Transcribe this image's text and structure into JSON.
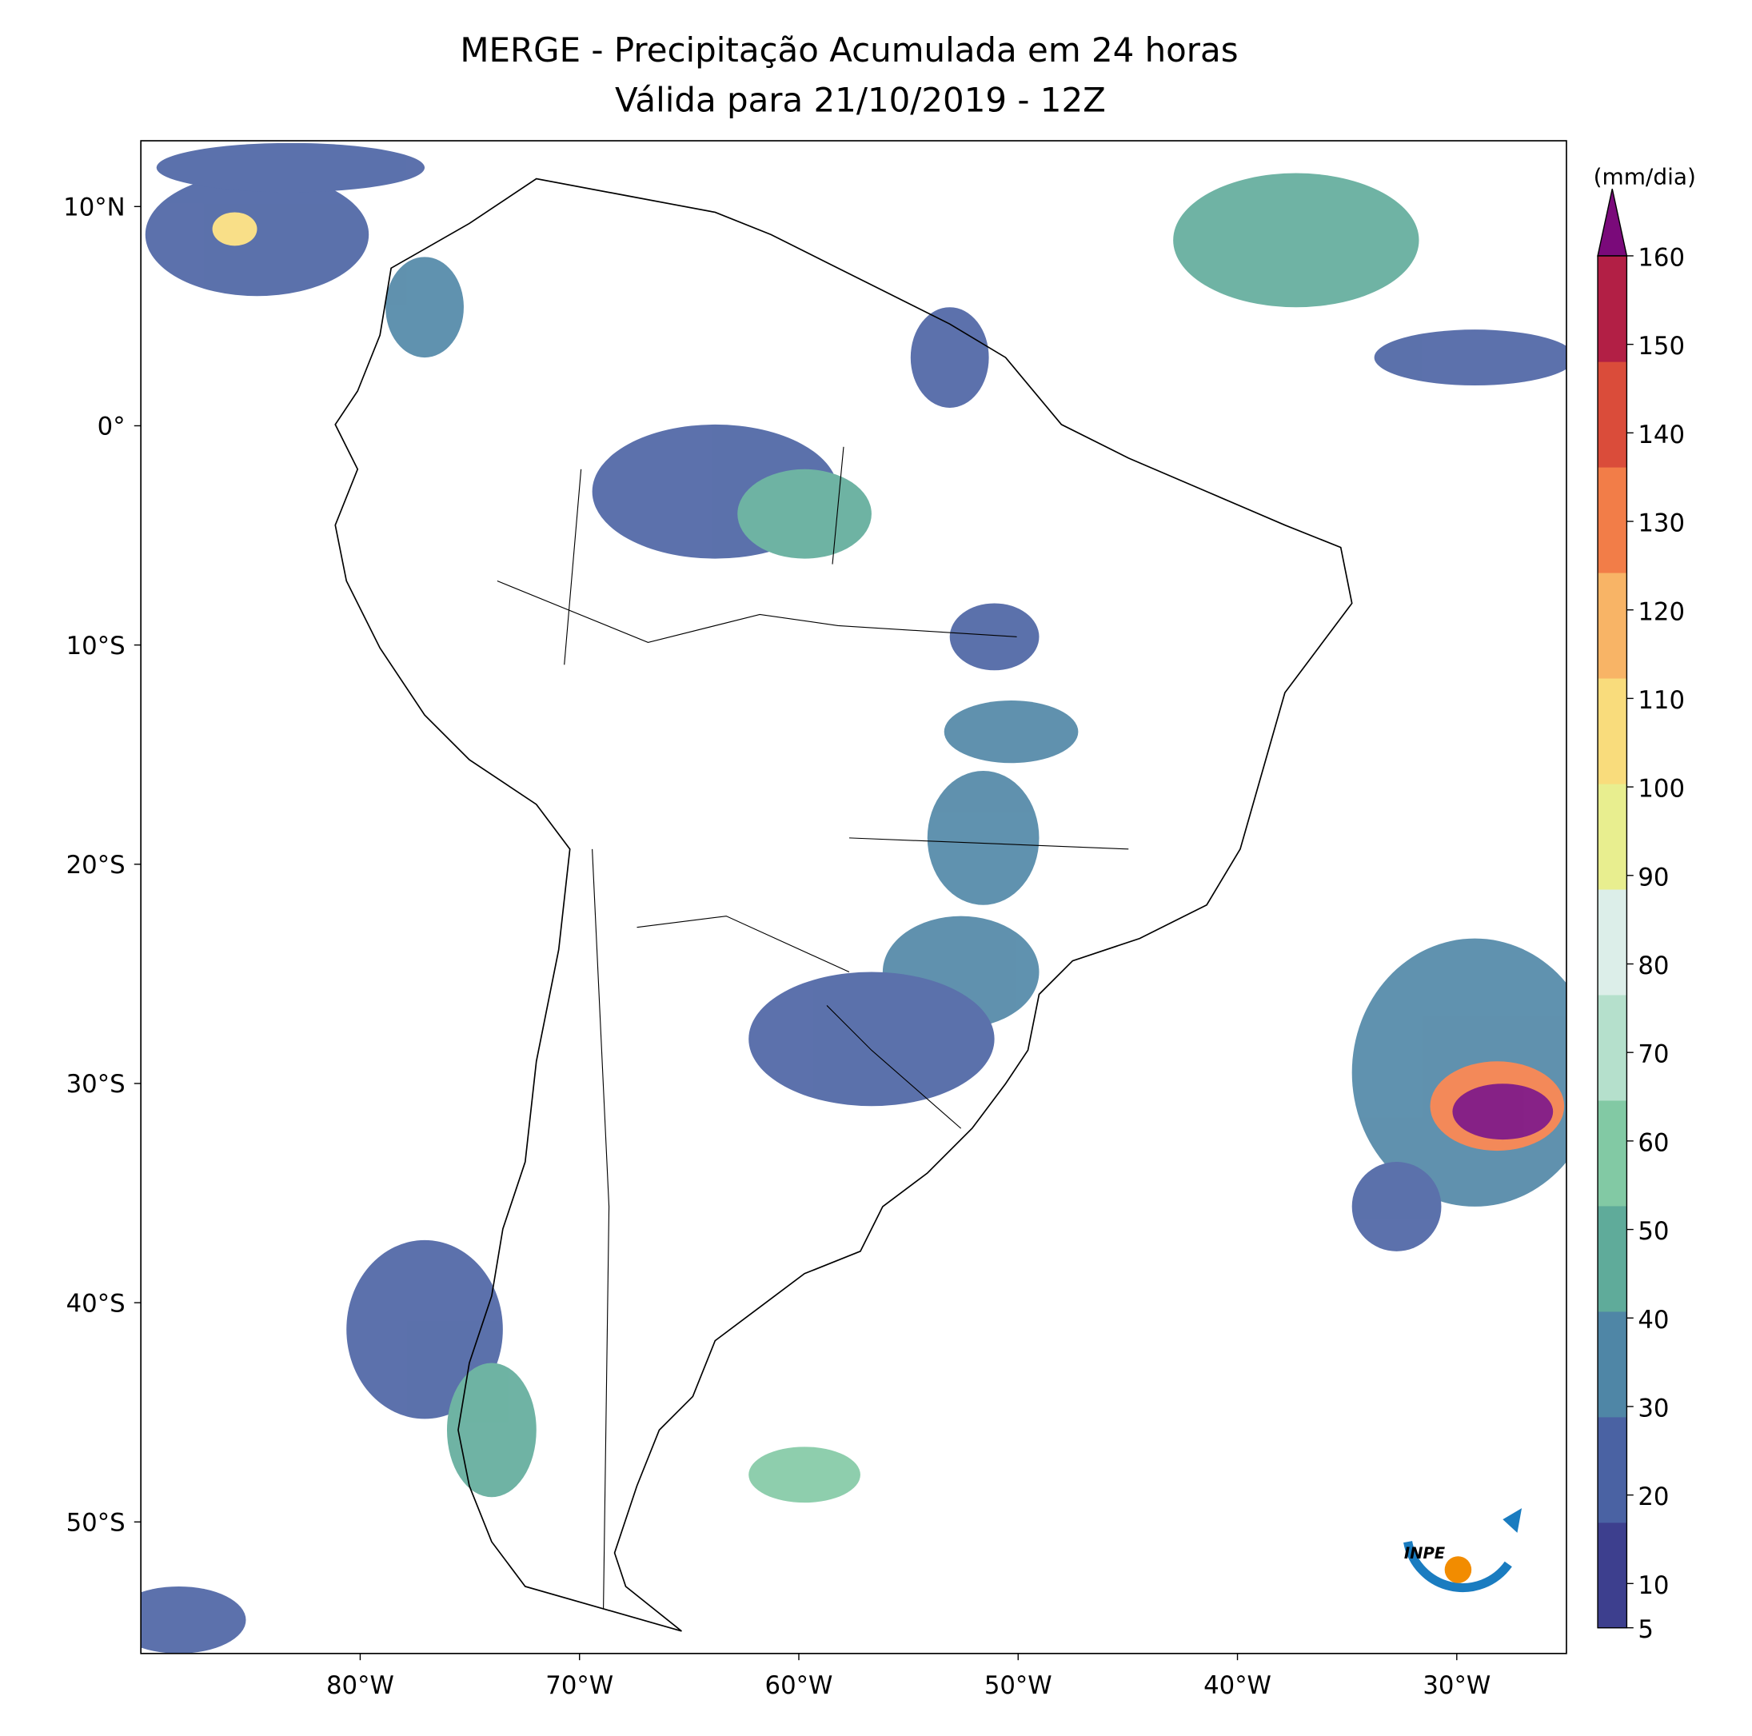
{
  "chart_data": {
    "type": "map",
    "title": "MERGE - Precipitação Acumulada em 24 horas",
    "subtitle": "Válida para 21/10/2019 - 12Z",
    "xlim": [
      -90,
      -25
    ],
    "ylim": [
      -56,
      13
    ],
    "xticks": [
      {
        "value": -80,
        "label": "80°W"
      },
      {
        "value": -70,
        "label": "70°W"
      },
      {
        "value": -60,
        "label": "60°W"
      },
      {
        "value": -50,
        "label": "50°W"
      },
      {
        "value": -40,
        "label": "40°W"
      },
      {
        "value": -30,
        "label": "30°W"
      }
    ],
    "yticks": [
      {
        "value": 10,
        "label": "10°N"
      },
      {
        "value": 0,
        "label": "0°"
      },
      {
        "value": -10,
        "label": "10°S"
      },
      {
        "value": -20,
        "label": "20°S"
      },
      {
        "value": -30,
        "label": "30°S"
      },
      {
        "value": -40,
        "label": "40°S"
      },
      {
        "value": -50,
        "label": "50°S"
      }
    ],
    "colorbar": {
      "label": "(mm/dia)",
      "lim": [
        5,
        160
      ],
      "ticks": [
        5,
        10,
        20,
        30,
        40,
        50,
        60,
        70,
        80,
        90,
        100,
        110,
        120,
        130,
        140,
        150,
        160
      ],
      "colors": [
        "#3d3f8e",
        "#4a62a3",
        "#4f86a6",
        "#5fab9a",
        "#82c9a4",
        "#b5e0cc",
        "#dceee9",
        "#e8ee8f",
        "#f9dc7c",
        "#f8b466",
        "#f27d48",
        "#da4c3a",
        "#b21f45"
      ],
      "extend_color": "#7a0a7a"
    },
    "logo": "INPE"
  }
}
